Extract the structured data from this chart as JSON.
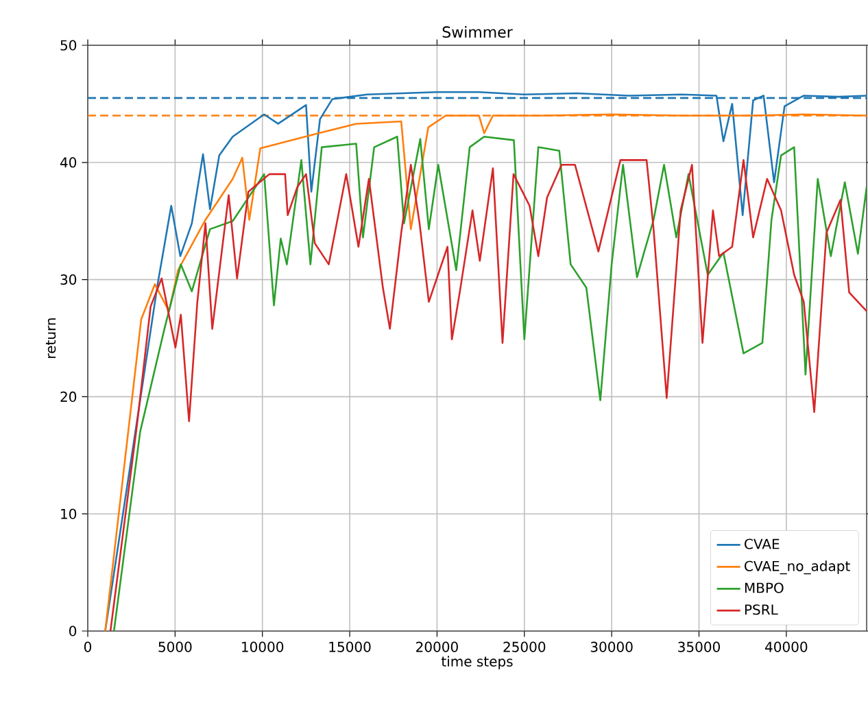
{
  "chart_data": {
    "type": "line",
    "title": "Swimmer",
    "xlabel": "time steps",
    "ylabel": "return",
    "xlim": [
      0,
      44600
    ],
    "ylim": [
      0,
      50
    ],
    "xticks": [
      0,
      5000,
      10000,
      15000,
      20000,
      25000,
      30000,
      35000,
      40000
    ],
    "yticks": [
      0,
      10,
      20,
      30,
      40,
      50
    ],
    "grid": true,
    "legend": "bottom right",
    "line_style": "solid",
    "marker": "none",
    "ref_lines": [
      {
        "axis": "y",
        "value": 45.5,
        "color": "#1f77b4",
        "line_style": "dashed"
      },
      {
        "axis": "y",
        "value": 44.0,
        "color": "#ff7f0e",
        "line_style": "dashed"
      }
    ],
    "series": [
      {
        "name": "CVAE",
        "color": "#1f77b4",
        "x": [
          1000,
          3060,
          4000,
          4780,
          5300,
          5960,
          6600,
          7000,
          7530,
          8300,
          10100,
          10900,
          12500,
          12800,
          13300,
          14000,
          16000,
          18000,
          20000,
          22400,
          25000,
          28000,
          31000,
          34000,
          36000,
          36400,
          36900,
          37500,
          38100,
          38700,
          39300,
          39900,
          41000,
          43000,
          44600
        ],
        "values": [
          0,
          20.3,
          29.6,
          36.3,
          32,
          34.8,
          40.7,
          36,
          40.6,
          42.2,
          44.1,
          43.3,
          44.9,
          37.5,
          43.7,
          45.4,
          45.8,
          45.9,
          46,
          46,
          45.8,
          45.9,
          45.7,
          45.8,
          45.7,
          41.8,
          45,
          35.5,
          45.3,
          45.7,
          38.3,
          44.8,
          45.7,
          45.6,
          45.7
        ]
      },
      {
        "name": "CVAE_no_adapt",
        "color": "#ff7f0e",
        "x": [
          1000,
          3060,
          3840,
          4650,
          5170,
          6740,
          8300,
          8850,
          9250,
          9880,
          13250,
          15370,
          17950,
          18500,
          19500,
          20500,
          22400,
          22700,
          23200,
          26000,
          30000,
          34000,
          38000,
          41000,
          44600
        ],
        "values": [
          0,
          26.6,
          29.6,
          27.3,
          30.8,
          35.1,
          38.6,
          40.4,
          35.1,
          41.2,
          42.5,
          43.3,
          43.5,
          34.3,
          43,
          44,
          44,
          42.5,
          44,
          44,
          44.1,
          44,
          44,
          44.1,
          44
        ]
      },
      {
        "name": "MBPO",
        "color": "#2ca02c",
        "x": [
          1500,
          3000,
          4390,
          5330,
          5960,
          7000,
          8300,
          10100,
          10660,
          11050,
          11400,
          12230,
          12750,
          13400,
          15370,
          15760,
          16400,
          17720,
          18110,
          19040,
          19530,
          20070,
          21100,
          21870,
          22700,
          24400,
          25000,
          25800,
          27000,
          27650,
          28550,
          29350,
          30000,
          30650,
          31450,
          31850,
          32400,
          33000,
          33700,
          34400,
          35500,
          36400,
          37550,
          38630,
          39150,
          39700,
          40450,
          41100,
          41800,
          42550,
          43350,
          44100,
          44600
        ],
        "values": [
          0,
          17,
          25.8,
          31.3,
          29,
          34.3,
          35,
          39,
          27.8,
          33.5,
          31.3,
          40.2,
          31.3,
          41.3,
          41.6,
          33.6,
          41.3,
          42.2,
          34.8,
          42,
          34.3,
          39.8,
          30.8,
          41.3,
          42.2,
          41.9,
          24.9,
          41.3,
          41,
          31.3,
          29.3,
          19.7,
          31.3,
          39.8,
          30.2,
          32.3,
          35.1,
          39.8,
          33.6,
          39,
          30.4,
          32.3,
          23.7,
          24.6,
          35.1,
          40.6,
          41.3,
          21.9,
          38.6,
          32,
          38.3,
          32.2,
          37.9
        ]
      },
      {
        "name": "PSRL",
        "color": "#d62728",
        "x": [
          1300,
          2820,
          3600,
          4230,
          5020,
          5330,
          5800,
          6270,
          6740,
          7130,
          8070,
          8550,
          9200,
          10400,
          11300,
          11450,
          12000,
          12500,
          13000,
          13800,
          14800,
          15500,
          16100,
          16900,
          17300,
          17950,
          18500,
          19000,
          19530,
          20600,
          20850,
          21300,
          22030,
          22450,
          23200,
          23750,
          24380,
          25300,
          25800,
          26300,
          27130,
          27900,
          29240,
          30500,
          32000,
          32400,
          33150,
          33950,
          34600,
          35200,
          35800,
          36150,
          36900,
          37550,
          38100,
          38900,
          39700,
          40450,
          41000,
          41600,
          42300,
          43100,
          43600,
          44600
        ],
        "values": [
          0,
          17.6,
          27.7,
          30.1,
          24.2,
          27,
          17.9,
          28,
          34.8,
          25.8,
          37.2,
          30.1,
          37.5,
          39,
          39,
          35.5,
          37.9,
          39,
          33.1,
          31.3,
          39,
          32.8,
          38.6,
          29.3,
          25.8,
          34,
          39.8,
          34.8,
          28.1,
          32.8,
          24.9,
          28.9,
          35.9,
          31.6,
          39.5,
          24.6,
          39,
          36.3,
          32,
          37,
          39.8,
          39.8,
          32.4,
          40.2,
          40.2,
          34.3,
          19.9,
          35.9,
          39.8,
          24.6,
          35.9,
          32,
          32.8,
          40.2,
          33.6,
          38.6,
          35.9,
          30.4,
          28.1,
          18.7,
          34,
          36.8,
          28.9,
          27.3
        ]
      }
    ]
  }
}
